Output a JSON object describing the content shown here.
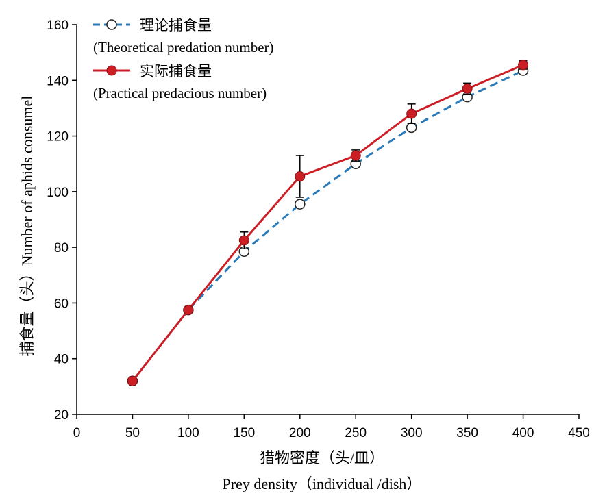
{
  "chart_data": {
    "type": "line",
    "x": [
      50,
      100,
      150,
      200,
      250,
      300,
      350,
      400
    ],
    "series": [
      {
        "name": "理论捕食量",
        "name_en": "(Theoretical predation number)",
        "values": [
          32,
          57.5,
          78.5,
          95.5,
          110,
          123,
          134,
          143.5
        ],
        "line_color": "#2a7ab8",
        "line_style": "dashed",
        "marker": "open-circle"
      },
      {
        "name": "实际捕食量",
        "name_en": "(Practical predacious number)",
        "values": [
          32,
          57.5,
          82.5,
          105.5,
          113,
          128,
          137,
          145.5
        ],
        "errors": [
          0,
          0,
          3,
          7.5,
          2,
          3.5,
          2,
          1.5
        ],
        "line_color": "#cc1e25",
        "line_style": "solid",
        "marker": "filled-circle"
      }
    ],
    "xlim": [
      0,
      450
    ],
    "ylim": [
      20,
      160
    ],
    "xticks": [
      0,
      50,
      100,
      150,
      200,
      250,
      300,
      350,
      400,
      450
    ],
    "yticks": [
      20,
      40,
      60,
      80,
      100,
      120,
      140,
      160
    ],
    "xlabel": "猎物密度（头/皿）",
    "xlabel_en": "Prey density（individual /dish）",
    "ylabel": "捕食量（头）Number of  aphids consumel",
    "legend_placement": "top-left",
    "grid": false
  }
}
